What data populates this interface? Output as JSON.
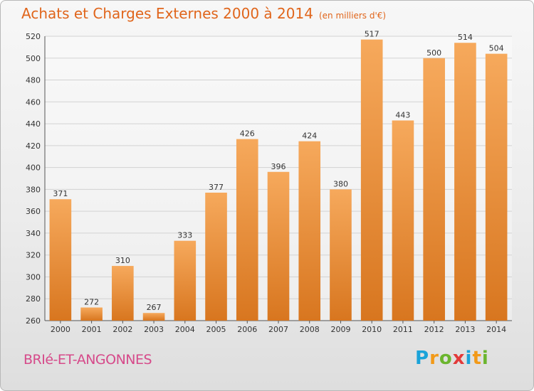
{
  "header": {
    "title": "Achats et Charges Externes 2000 à 2014",
    "unit": "(en milliers d'€)"
  },
  "footer": {
    "commune": "BRIé-ET-ANGONNES",
    "logo_letters": [
      "P",
      "r",
      "o",
      "x",
      "i",
      "t",
      "i"
    ],
    "logo_colors": [
      "#1aa3d9",
      "#f29a19",
      "#6bb52e",
      "#e23a3a",
      "#1aa3d9",
      "#f29a19",
      "#6bb52e"
    ]
  },
  "colors": {
    "bar_top": "#f6a95c",
    "bar_bottom": "#d8761f",
    "grid": "#d2d2d2",
    "axis": "#555555"
  },
  "chart_data": {
    "type": "bar",
    "title": "Achats et Charges Externes 2000 à 2014",
    "subtitle": "(en milliers d'€)",
    "xlabel": "",
    "ylabel": "",
    "categories": [
      "2000",
      "2001",
      "2002",
      "2003",
      "2004",
      "2005",
      "2006",
      "2007",
      "2008",
      "2009",
      "2010",
      "2011",
      "2012",
      "2013",
      "2014"
    ],
    "values": [
      371,
      272,
      310,
      267,
      333,
      377,
      426,
      396,
      424,
      380,
      517,
      443,
      500,
      514,
      504
    ],
    "ylim": [
      260,
      520
    ],
    "yticks": [
      260,
      280,
      300,
      320,
      340,
      360,
      380,
      400,
      420,
      440,
      460,
      480,
      500,
      520
    ],
    "grid": true,
    "legend": "none"
  }
}
